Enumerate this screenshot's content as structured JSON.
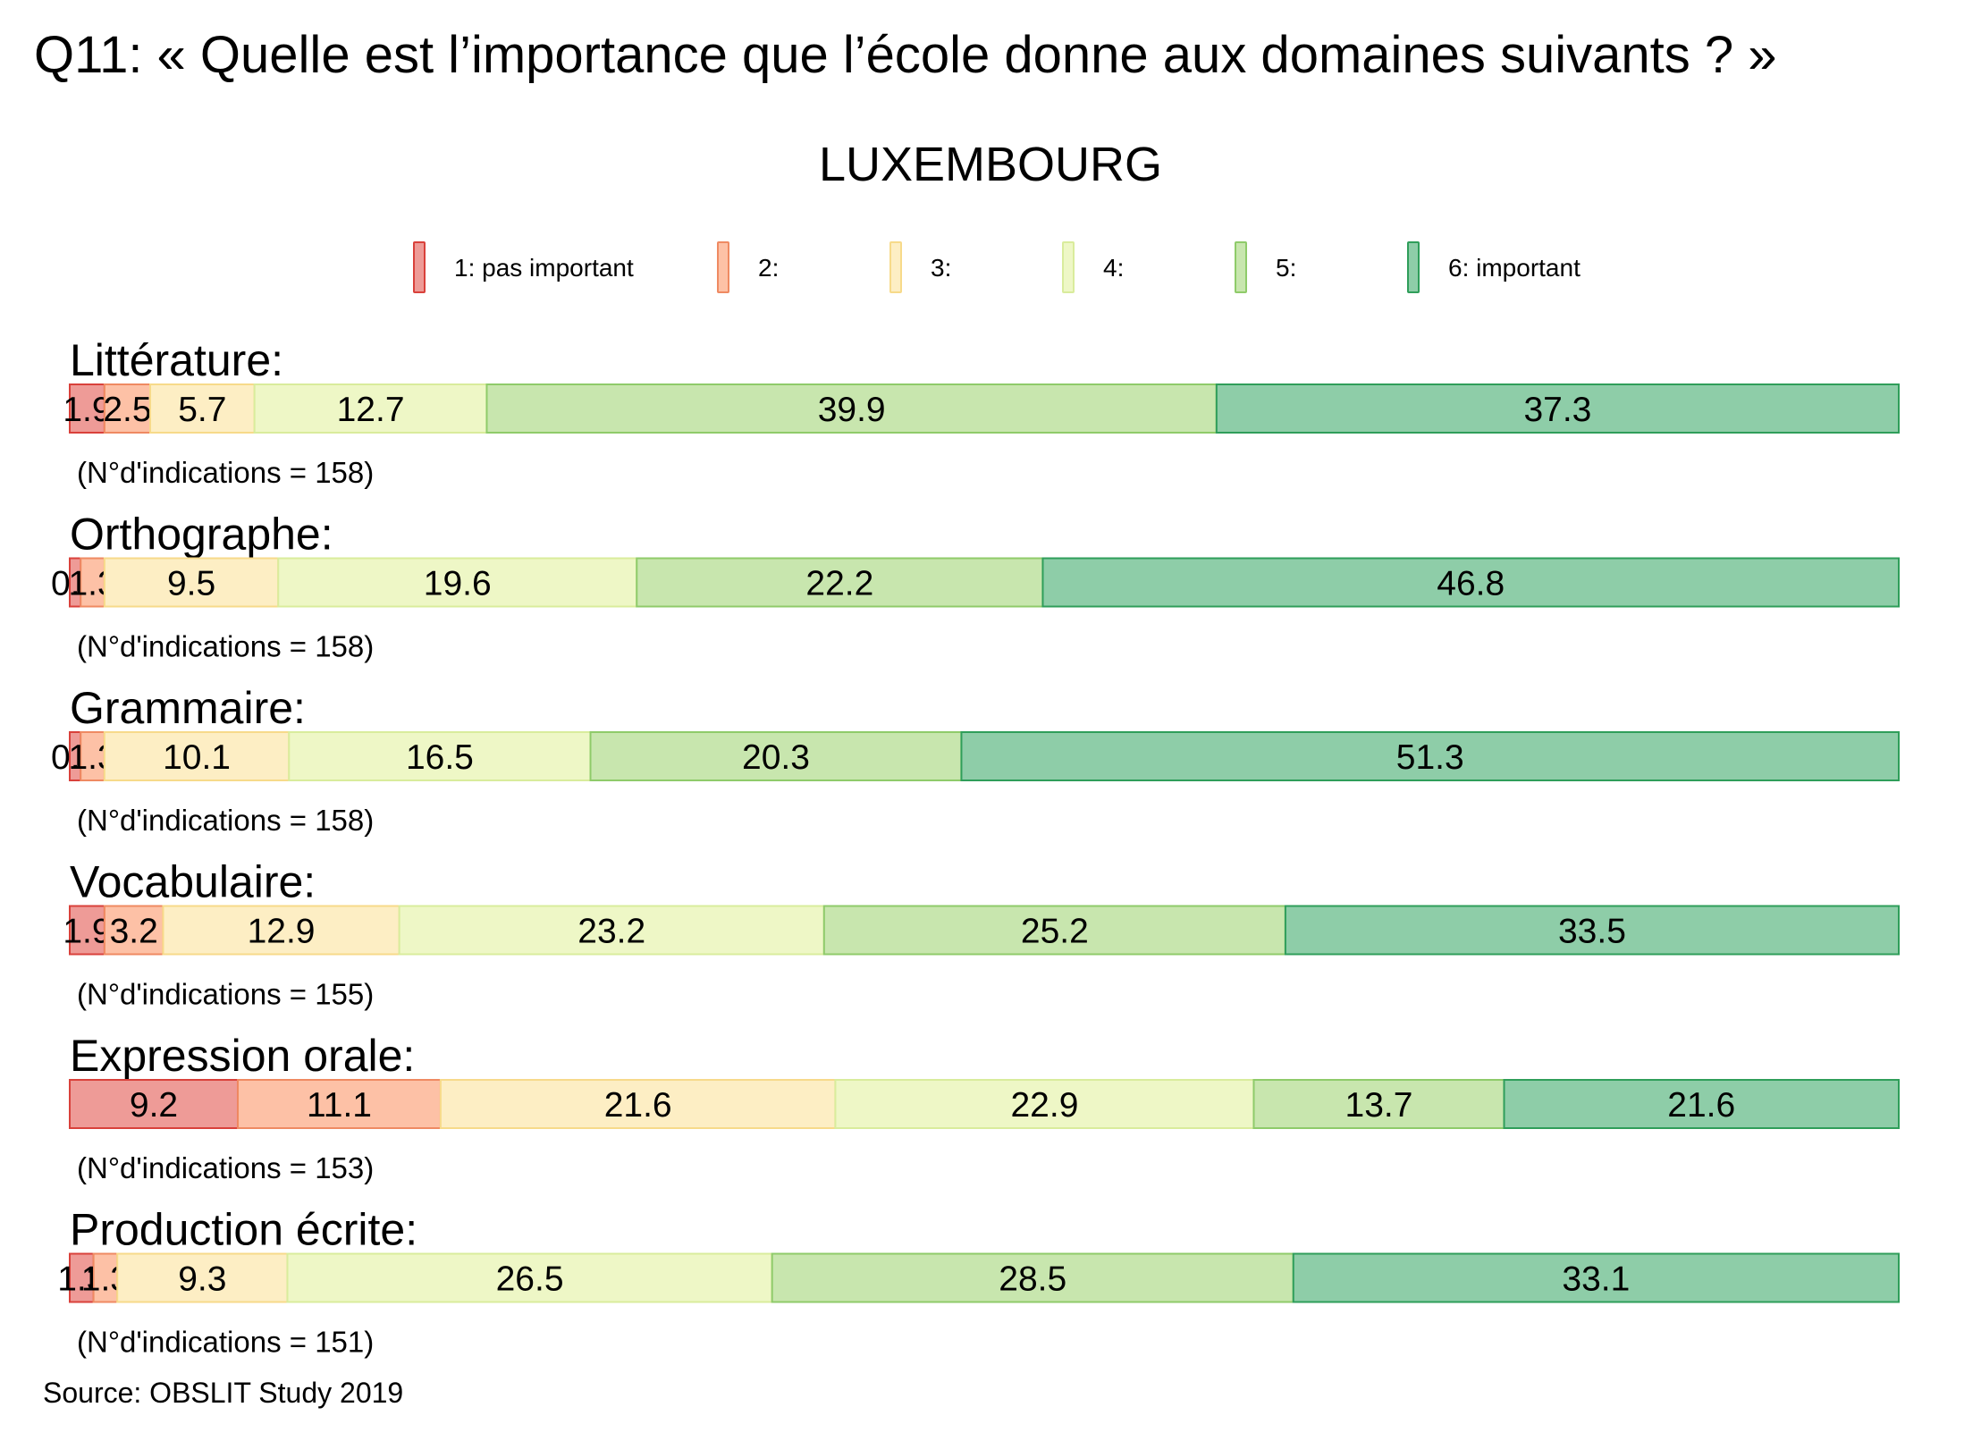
{
  "title": "Q11: « Quelle est l’importance que l’école donne aux domaines suivants ? »",
  "subtitle": "LUXEMBOURG",
  "source": "Source: OBSLIT Study 2019",
  "legend": [
    {
      "label": "1: pas important",
      "fill": "#ee9b97",
      "stroke": "#d9413b"
    },
    {
      "label": "2:",
      "fill": "#fdc1a6",
      "stroke": "#ef8a62"
    },
    {
      "label": "3:",
      "fill": "#fdeec4",
      "stroke": "#f7da8a"
    },
    {
      "label": "4:",
      "fill": "#eef7c6",
      "stroke": "#d9ec9c"
    },
    {
      "label": "5:",
      "fill": "#c8e6ae",
      "stroke": "#8fcb6a"
    },
    {
      "label": "6: important",
      "fill": "#8ecda8",
      "stroke": "#2f9e5a"
    }
  ],
  "chart_data": {
    "type": "bar",
    "orientation": "horizontal-stacked-percent",
    "series_names": [
      "1: pas important",
      "2:",
      "3:",
      "4:",
      "5:",
      "6: important"
    ],
    "rows": [
      {
        "label": "Littérature:",
        "n_text": "(N°d'indications = 158)",
        "values": [
          1.9,
          2.5,
          5.7,
          12.7,
          39.9,
          37.3
        ]
      },
      {
        "label": "Orthographe:",
        "n_text": "(N°d'indications = 158)",
        "values": [
          0.6,
          1.3,
          9.5,
          19.6,
          22.2,
          46.8
        ]
      },
      {
        "label": "Grammaire:",
        "n_text": "(N°d'indications = 158)",
        "values": [
          0.6,
          1.3,
          10.1,
          16.5,
          20.3,
          51.3
        ]
      },
      {
        "label": "Vocabulaire:",
        "n_text": "(N°d'indications = 155)",
        "values": [
          1.9,
          3.2,
          12.9,
          23.2,
          25.2,
          33.5
        ]
      },
      {
        "label": "Expression orale:",
        "n_text": "(N°d'indications = 153)",
        "values": [
          9.2,
          11.1,
          21.6,
          22.9,
          13.7,
          21.6
        ]
      },
      {
        "label": "Production écrite:",
        "n_text": "(N°d'indications = 151)",
        "values": [
          1.3,
          1.3,
          9.3,
          26.5,
          28.5,
          33.1
        ]
      }
    ]
  }
}
